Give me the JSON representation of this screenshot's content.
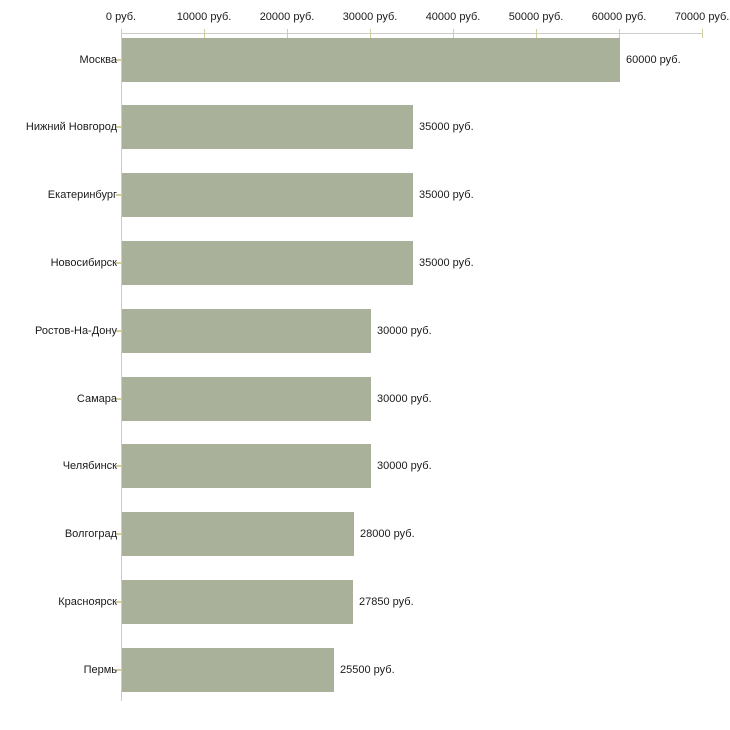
{
  "chart_data": {
    "type": "bar",
    "orientation": "horizontal",
    "title": "",
    "xlabel": "",
    "ylabel": "",
    "xlim": [
      0,
      70000
    ],
    "x_tick_step": 10000,
    "grid": false,
    "legend": false,
    "x_tick_labels": [
      "0 руб.",
      "10000 руб.",
      "20000 руб.",
      "30000 руб.",
      "40000 руб.",
      "50000 руб.",
      "60000 руб.",
      "70000 руб."
    ],
    "categories": [
      "Москва",
      "Нижний Новгород",
      "Екатеринбург",
      "Новосибирск",
      "Ростов-На-Дону",
      "Самара",
      "Челябинск",
      "Волгоград",
      "Красноярск",
      "Пермь"
    ],
    "values": [
      60000,
      35000,
      35000,
      35000,
      30000,
      30000,
      30000,
      28000,
      27850,
      25500
    ],
    "value_labels": [
      "60000 руб.",
      "35000 руб.",
      "35000 руб.",
      "35000 руб.",
      "30000 руб.",
      "30000 руб.",
      "30000 руб.",
      "28000 руб.",
      "27850 руб.",
      "25500 руб."
    ],
    "colors": {
      "bar": "#aab19a",
      "axis": "#cccccc",
      "tick": "#cfcfa0",
      "text": "#1a1a1a",
      "background": "#ffffff"
    }
  }
}
